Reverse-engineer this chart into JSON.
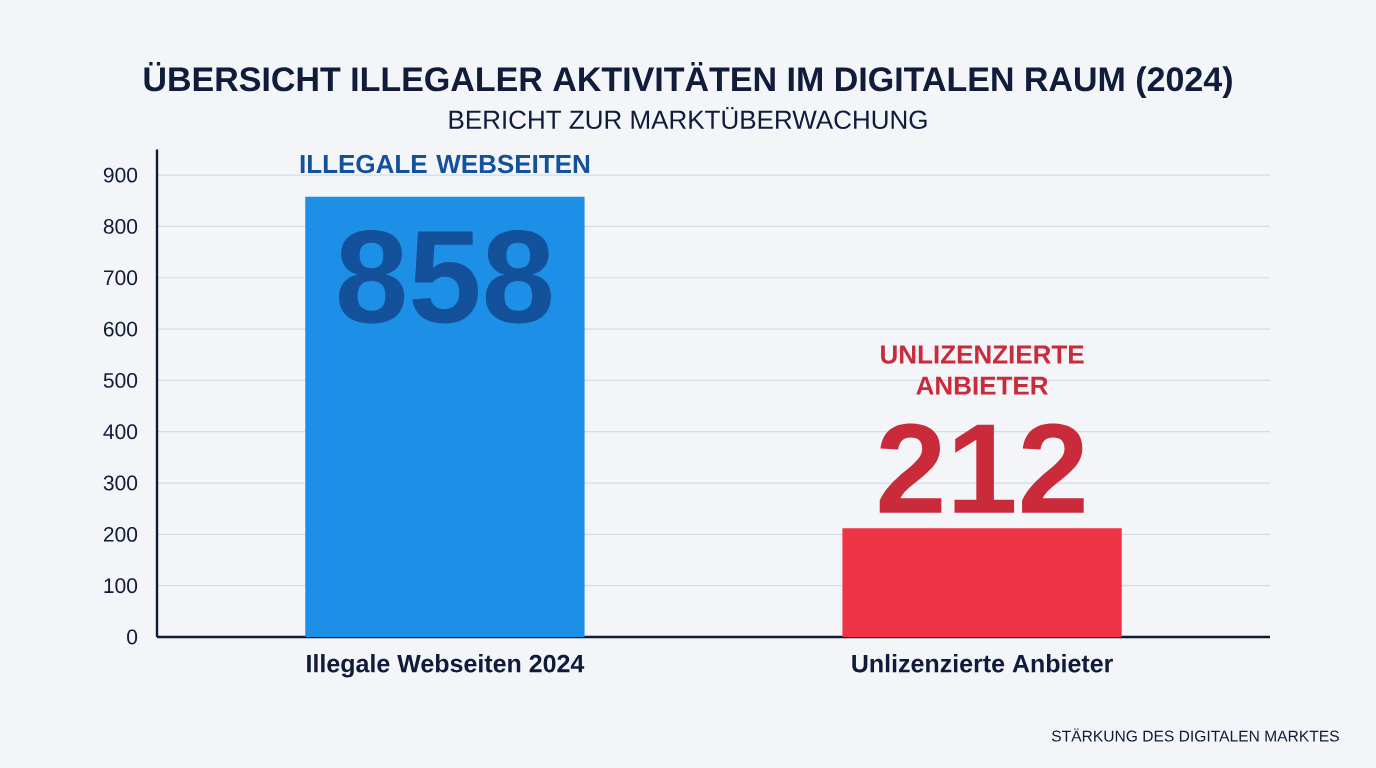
{
  "chart_data": {
    "type": "bar",
    "title": "ÜBERSICHT ILLEGALER AKTIVITÄTEN IM DIGITALEN RAUM (2024)",
    "subtitle": "BERICHT ZUR MARKTÜBERWACHUNG",
    "categories": [
      "Illegale Webseiten 2024",
      "Unlizenzierte Anbieter"
    ],
    "values": [
      858,
      212
    ],
    "colors": [
      "#1e8fe6",
      "#ee3344"
    ],
    "ylim": [
      0,
      950
    ],
    "yticks": [
      0,
      100,
      200,
      300,
      400,
      500,
      600,
      700,
      800,
      900
    ],
    "grid": "y",
    "data_labels": true,
    "annotations": [
      "ILLEGALE WEBSEITEN",
      "UNLIZENZIERTE ANBIETER",
      "STÄRKUNG DES DIGITALEN MARKTES"
    ]
  }
}
